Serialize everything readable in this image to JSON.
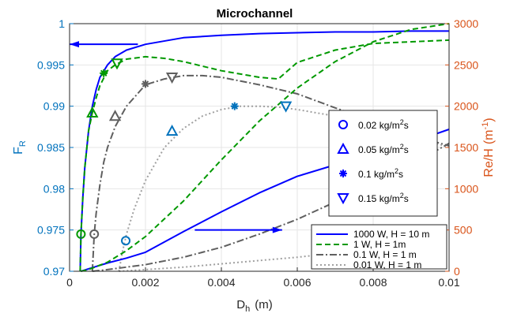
{
  "chart_data": {
    "type": "line",
    "title": "Microchannel",
    "xlabel": "D_h (m)",
    "xlabel_main": "D",
    "xlabel_sub": "h",
    "xlabel_unit": "(m)",
    "ylabel_left_main": "F",
    "ylabel_left_sub": "R",
    "ylabel_right_main": "Re/H",
    "ylabel_right_unit_open": "(m",
    "ylabel_right_unit_sup": "-1",
    "ylabel_right_unit_close": ")",
    "xlim": [
      0,
      0.01
    ],
    "ylim_left": [
      0.97,
      1
    ],
    "ylim_right": [
      0,
      3000
    ],
    "xticks": [
      "0",
      "0.002",
      "0.004",
      "0.006",
      "0.008",
      "0.01"
    ],
    "yticks_left": [
      "0.97",
      "0.975",
      "0.98",
      "0.985",
      "0.99",
      "0.995",
      "1"
    ],
    "yticks_right": [
      "0",
      "500",
      "1000",
      "1500",
      "2000",
      "2500",
      "3000"
    ],
    "grid": true,
    "colors": {
      "left_axis": "#0072BD",
      "right_axis": "#D95319",
      "blue": "#0000FF",
      "green": "#009900",
      "darkgray": "#5f5f5f",
      "lightgray": "#a0a0a0"
    },
    "series": [
      {
        "name": "1000 W, H = 10 m",
        "style": "solid",
        "color": "#0000FF",
        "axis": "left",
        "x": [
          0.00028,
          0.0003,
          0.00035,
          0.0004,
          0.0005,
          0.0006,
          0.0007,
          0.0008,
          0.001,
          0.0012,
          0.0015,
          0.002,
          0.003,
          0.004,
          0.005,
          0.006,
          0.007,
          0.008,
          0.009,
          0.01
        ],
        "y": [
          0.97,
          0.9745,
          0.979,
          0.9825,
          0.987,
          0.99,
          0.992,
          0.9935,
          0.995,
          0.996,
          0.9968,
          0.9975,
          0.9983,
          0.9986,
          0.9988,
          0.9989,
          0.999,
          0.999,
          0.9991,
          0.9991
        ]
      },
      {
        "name": "1 W, H = 1m",
        "style": "dashed",
        "color": "#009900",
        "axis": "left",
        "x": [
          0.00028,
          0.0003,
          0.00035,
          0.0004,
          0.0005,
          0.0006,
          0.0007,
          0.0008,
          0.001,
          0.0012,
          0.0015,
          0.002,
          0.0025,
          0.003,
          0.004,
          0.005,
          0.0055,
          0.006,
          0.007,
          0.008,
          0.009,
          0.01
        ],
        "y": [
          0.97,
          0.9745,
          0.979,
          0.9825,
          0.987,
          0.9892,
          0.991,
          0.9925,
          0.9943,
          0.995,
          0.9957,
          0.996,
          0.9958,
          0.9954,
          0.9943,
          0.9935,
          0.9933,
          0.9953,
          0.9968,
          0.9976,
          0.9978,
          0.998
        ]
      },
      {
        "name": "0.1 W, H = 1 m",
        "style": "dashdot",
        "color": "#5f5f5f",
        "axis": "left",
        "x": [
          0.0006,
          0.00065,
          0.0007,
          0.0008,
          0.0009,
          0.001,
          0.0012,
          0.0015,
          0.002,
          0.0025,
          0.003,
          0.0035,
          0.004,
          0.005,
          0.006,
          0.007,
          0.008,
          0.009,
          0.01
        ],
        "y": [
          0.97,
          0.9745,
          0.977,
          0.9805,
          0.9832,
          0.985,
          0.9875,
          0.99,
          0.9926,
          0.9933,
          0.9937,
          0.9937,
          0.9935,
          0.9926,
          0.9915,
          0.9898,
          0.9882,
          0.9865,
          0.9852
        ]
      },
      {
        "name": "0.01 W, H = 1 m",
        "style": "dotted",
        "color": "#a0a0a0",
        "axis": "left",
        "x": [
          0.0013,
          0.0014,
          0.0015,
          0.0017,
          0.002,
          0.0025,
          0.003,
          0.0035,
          0.004,
          0.0045,
          0.005,
          0.0055,
          0.006,
          0.007,
          0.008,
          0.009,
          0.01
        ],
        "y": [
          0.97,
          0.9725,
          0.9745,
          0.9775,
          0.981,
          0.985,
          0.9873,
          0.9888,
          0.9896,
          0.99,
          0.99,
          0.9899,
          0.9896,
          0.9888,
          0.9877,
          0.9865,
          0.985
        ]
      },
      {
        "name": "1000 W, H = 10 m (Re/H)",
        "style": "solid",
        "color": "#0000FF",
        "axis": "right",
        "x": [
          0.0003,
          0.0005,
          0.001,
          0.0015,
          0.002,
          0.003,
          0.004,
          0.005,
          0.006,
          0.007,
          0.008,
          0.009,
          0.01
        ],
        "y": [
          0,
          30,
          100,
          160,
          230,
          480,
          720,
          950,
          1150,
          1290,
          1430,
          1560,
          1720
        ]
      },
      {
        "name": "1 W, H = 1m (Re/H)",
        "style": "dashed",
        "color": "#009900",
        "axis": "right",
        "x": [
          0.0003,
          0.0005,
          0.001,
          0.0015,
          0.002,
          0.003,
          0.004,
          0.005,
          0.006,
          0.007,
          0.008,
          0.009,
          0.01
        ],
        "y": [
          0,
          20,
          110,
          250,
          420,
          850,
          1350,
          1820,
          2220,
          2540,
          2780,
          2930,
          3000
        ]
      },
      {
        "name": "0.1 W, H = 1 m (Re/H)",
        "style": "dashdot",
        "color": "#5f5f5f",
        "axis": "right",
        "x": [
          0.0006,
          0.001,
          0.002,
          0.003,
          0.004,
          0.005,
          0.006,
          0.007,
          0.008,
          0.009,
          0.01
        ],
        "y": [
          0,
          20,
          80,
          170,
          290,
          450,
          630,
          840,
          1060,
          1290,
          1550
        ]
      },
      {
        "name": "0.01 W, H = 1 m (Re/H)",
        "style": "dotted",
        "color": "#a0a0a0",
        "axis": "right",
        "x": [
          0.0013,
          0.002,
          0.003,
          0.004,
          0.005,
          0.006,
          0.007,
          0.008,
          0.009,
          0.01
        ],
        "y": [
          0,
          20,
          50,
          90,
          130,
          170,
          220,
          270,
          320,
          380
        ]
      }
    ],
    "markers": [
      {
        "name": "0.02 kg/m2s",
        "symbol": "circle",
        "points": [
          {
            "x": 0.0003,
            "y": 0.9745,
            "color": "#009900"
          },
          {
            "x": 0.00065,
            "y": 0.9745,
            "color": "#5f5f5f"
          },
          {
            "x": 0.00148,
            "y": 0.9737,
            "color": "#0072BD"
          }
        ]
      },
      {
        "name": "0.05 kg/m2s",
        "symbol": "triangle-up",
        "points": [
          {
            "x": 0.0006,
            "y": 0.9892,
            "color": "#009900"
          },
          {
            "x": 0.0012,
            "y": 0.9888,
            "color": "#5f5f5f"
          },
          {
            "x": 0.0027,
            "y": 0.987,
            "color": "#0072BD"
          }
        ]
      },
      {
        "name": "0.1 kg/m2s",
        "symbol": "asterisk",
        "points": [
          {
            "x": 0.0009,
            "y": 0.994,
            "color": "#009900"
          },
          {
            "x": 0.002,
            "y": 0.9927,
            "color": "#5f5f5f"
          },
          {
            "x": 0.00435,
            "y": 0.99,
            "color": "#0072BD"
          }
        ]
      },
      {
        "name": "0.15 kg/m2s",
        "symbol": "triangle-down",
        "points": [
          {
            "x": 0.00125,
            "y": 0.9952,
            "color": "#009900"
          },
          {
            "x": 0.0027,
            "y": 0.9935,
            "color": "#5f5f5f"
          },
          {
            "x": 0.0057,
            "y": 0.99,
            "color": "#0072BD"
          }
        ]
      }
    ],
    "marker_legend": [
      {
        "symbol": "circle",
        "main": "0.02 kg/m",
        "sup": "2",
        "tail": "s"
      },
      {
        "symbol": "triangle-up",
        "main": "0.05 kg/m",
        "sup": "2",
        "tail": "s"
      },
      {
        "symbol": "asterisk",
        "main": "0.1 kg/m",
        "sup": "2",
        "tail": "s"
      },
      {
        "symbol": "triangle-down",
        "main": "0.15 kg/m",
        "sup": "2",
        "tail": "s"
      }
    ],
    "arrows": [
      {
        "from": {
          "x": 0.0018,
          "y": 0.9975
        },
        "to": {
          "x": 0.0,
          "y": 0.9975
        },
        "axis": "left"
      },
      {
        "from": {
          "x": 0.0033,
          "y": 500
        },
        "to": {
          "x": 0.0056,
          "y": 500
        },
        "axis": "right"
      }
    ],
    "legend_position": "bottom-right",
    "marker_legend_position": "center-right"
  }
}
